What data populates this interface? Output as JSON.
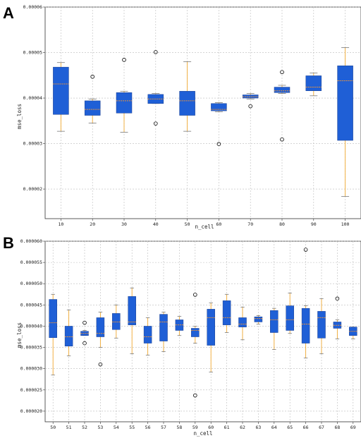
{
  "chart_data": [
    {
      "type": "box",
      "panel_label": "A",
      "xlabel": "n_cell",
      "ylabel": "mse_loss",
      "ylim": [
        1.35e-05,
        6e-05
      ],
      "yticks": [
        2e-05,
        3e-05,
        4e-05,
        5e-05,
        6e-05
      ],
      "ytick_labels": [
        "0.00002",
        "0.00003",
        "0.00004",
        "0.00005",
        "0.00006"
      ],
      "grid": true,
      "box_color": "#1f5fd6",
      "median_color": "#e8923a",
      "whisker_color": "#f0a830",
      "categories": [
        "10",
        "20",
        "30",
        "40",
        "50",
        "60",
        "70",
        "80",
        "90",
        "100"
      ],
      "boxes": [
        {
          "whislo": 3.27e-05,
          "q1": 3.64e-05,
          "med": 4.31e-05,
          "q3": 4.68e-05,
          "whishi": 4.78e-05,
          "fliers": []
        },
        {
          "whislo": 3.45e-05,
          "q1": 3.62e-05,
          "med": 3.75e-05,
          "q3": 3.94e-05,
          "whishi": 3.98e-05,
          "fliers": [
            4.47e-05
          ]
        },
        {
          "whislo": 3.25e-05,
          "q1": 3.67e-05,
          "med": 3.94e-05,
          "q3": 4.12e-05,
          "whishi": 4.15e-05,
          "fliers": [
            4.84e-05
          ]
        },
        {
          "whislo": 3.88e-05,
          "q1": 3.88e-05,
          "med": 3.98e-05,
          "q3": 4.08e-05,
          "whishi": 4.1e-05,
          "fliers": [
            5.01e-05,
            3.44e-05
          ]
        },
        {
          "whislo": 3.27e-05,
          "q1": 3.62e-05,
          "med": 3.94e-05,
          "q3": 4.15e-05,
          "whishi": 4.8e-05,
          "fliers": []
        },
        {
          "whislo": 3.7e-05,
          "q1": 3.72e-05,
          "med": 3.75e-05,
          "q3": 3.88e-05,
          "whishi": 3.9e-05,
          "fliers": [
            2.99e-05
          ]
        },
        {
          "whislo": 3.98e-05,
          "q1": 4e-05,
          "med": 4.03e-05,
          "q3": 4.07e-05,
          "whishi": 4.1e-05,
          "fliers": [
            3.82e-05
          ]
        },
        {
          "whislo": 4.1e-05,
          "q1": 4.12e-05,
          "med": 4.16e-05,
          "q3": 4.24e-05,
          "whishi": 4.28e-05,
          "fliers": [
            4.57e-05,
            3.09e-05
          ]
        },
        {
          "whislo": 4.05e-05,
          "q1": 4.16e-05,
          "med": 4.24e-05,
          "q3": 4.49e-05,
          "whishi": 4.55e-05,
          "fliers": []
        },
        {
          "whislo": 1.84e-05,
          "q1": 3.07e-05,
          "med": 4.38e-05,
          "q3": 4.71e-05,
          "whishi": 5.11e-05,
          "fliers": []
        }
      ]
    },
    {
      "type": "box",
      "panel_label": "B",
      "xlabel": "n_cell",
      "ylabel": "mse_loss",
      "ylim": [
        1.75e-05,
        6e-05
      ],
      "yticks": [
        2e-05,
        2.5e-05,
        3e-05,
        3.5e-05,
        4e-05,
        4.5e-05,
        5e-05,
        5.5e-05,
        6e-05
      ],
      "ytick_labels": [
        "0.000020",
        "0.000025",
        "0.000030",
        "0.000035",
        "0.000040",
        "0.000045",
        "0.000050",
        "0.000055",
        "0.000060"
      ],
      "grid": true,
      "box_color": "#1f5fd6",
      "median_color": "#e8923a",
      "whisker_color": "#f0a830",
      "categories": [
        "50",
        "51",
        "52",
        "53",
        "54",
        "55",
        "56",
        "57",
        "58",
        "59",
        "60",
        "61",
        "62",
        "63",
        "64",
        "65",
        "66",
        "67",
        "68",
        "69"
      ],
      "boxes": [
        {
          "whislo": 2.85e-05,
          "q1": 3.73e-05,
          "med": 4.08e-05,
          "q3": 4.63e-05,
          "whishi": 4.75e-05,
          "fliers": []
        },
        {
          "whislo": 3.3e-05,
          "q1": 3.53e-05,
          "med": 3.75e-05,
          "q3": 4e-05,
          "whishi": 4.38e-05,
          "fliers": []
        },
        {
          "whislo": 3.78e-05,
          "q1": 3.78e-05,
          "med": 3.83e-05,
          "q3": 3.88e-05,
          "whishi": 3.9e-05,
          "fliers": [
            4.08e-05,
            3.6e-05
          ]
        },
        {
          "whislo": 3.5e-05,
          "q1": 3.75e-05,
          "med": 3.83e-05,
          "q3": 4.2e-05,
          "whishi": 4.33e-05,
          "fliers": [
            3.1e-05
          ]
        },
        {
          "whislo": 3.72e-05,
          "q1": 3.92e-05,
          "med": 4.1e-05,
          "q3": 4.3e-05,
          "whishi": 4.5e-05,
          "fliers": []
        },
        {
          "whislo": 3.35e-05,
          "q1": 4.03e-05,
          "med": 4.1e-05,
          "q3": 4.7e-05,
          "whishi": 4.9e-05,
          "fliers": []
        },
        {
          "whislo": 3.32e-05,
          "q1": 3.6e-05,
          "med": 3.75e-05,
          "q3": 4e-05,
          "whishi": 4.2e-05,
          "fliers": []
        },
        {
          "whislo": 3.4e-05,
          "q1": 3.65e-05,
          "med": 4.1e-05,
          "q3": 4.28e-05,
          "whishi": 4.33e-05,
          "fliers": []
        },
        {
          "whislo": 3.78e-05,
          "q1": 3.9e-05,
          "med": 4.03e-05,
          "q3": 4.15e-05,
          "whishi": 4.23e-05,
          "fliers": []
        },
        {
          "whislo": 3.6e-05,
          "q1": 3.75e-05,
          "med": 3.9e-05,
          "q3": 3.95e-05,
          "whishi": 4e-05,
          "fliers": [
            4.74e-05,
            2.37e-05
          ]
        },
        {
          "whislo": 2.92e-05,
          "q1": 3.55e-05,
          "med": 4.2e-05,
          "q3": 4.4e-05,
          "whishi": 4.55e-05,
          "fliers": []
        },
        {
          "whislo": 3.85e-05,
          "q1": 4.03e-05,
          "med": 4.2e-05,
          "q3": 4.6e-05,
          "whishi": 4.75e-05,
          "fliers": []
        },
        {
          "whislo": 3.68e-05,
          "q1": 3.98e-05,
          "med": 4.05e-05,
          "q3": 4.2e-05,
          "whishi": 4.45e-05,
          "fliers": []
        },
        {
          "whislo": 4.05e-05,
          "q1": 4.1e-05,
          "med": 4.18e-05,
          "q3": 4.22e-05,
          "whishi": 4.25e-05,
          "fliers": []
        },
        {
          "whislo": 3.45e-05,
          "q1": 3.85e-05,
          "med": 4.15e-05,
          "q3": 4.37e-05,
          "whishi": 4.42e-05,
          "fliers": []
        },
        {
          "whislo": 3.83e-05,
          "q1": 3.9e-05,
          "med": 4.15e-05,
          "q3": 4.48e-05,
          "whishi": 4.78e-05,
          "fliers": []
        },
        {
          "whislo": 3.25e-05,
          "q1": 3.6e-05,
          "med": 4.05e-05,
          "q3": 4.42e-05,
          "whishi": 4.48e-05,
          "fliers": [
            5.8e-05
          ]
        },
        {
          "whislo": 3.35e-05,
          "q1": 3.72e-05,
          "med": 4.2e-05,
          "q3": 4.35e-05,
          "whishi": 4.65e-05,
          "fliers": []
        },
        {
          "whislo": 3.7e-05,
          "q1": 3.95e-05,
          "med": 4.02e-05,
          "q3": 4.1e-05,
          "whishi": 4.15e-05,
          "fliers": [
            4.65e-05
          ]
        },
        {
          "whislo": 3.7e-05,
          "q1": 3.78e-05,
          "med": 3.88e-05,
          "q3": 3.98e-05,
          "whishi": 3.98e-05,
          "fliers": []
        }
      ]
    }
  ]
}
